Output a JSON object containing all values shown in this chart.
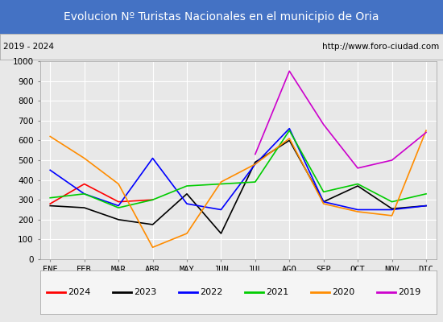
{
  "title": "Evolucion Nº Turistas Nacionales en el municipio de Oria",
  "subtitle_left": "2019 - 2024",
  "subtitle_right": "http://www.foro-ciudad.com",
  "months": [
    "ENE",
    "FEB",
    "MAR",
    "ABR",
    "MAY",
    "JUN",
    "JUL",
    "AGO",
    "SEP",
    "OCT",
    "NOV",
    "DIC"
  ],
  "ylim": [
    0,
    1000
  ],
  "yticks": [
    0,
    100,
    200,
    300,
    400,
    500,
    600,
    700,
    800,
    900,
    1000
  ],
  "series": {
    "2024": {
      "color": "#ff0000",
      "data": [
        280,
        380,
        290,
        300,
        null,
        null,
        null,
        null,
        null,
        null,
        null,
        null
      ]
    },
    "2023": {
      "color": "#000000",
      "data": [
        270,
        260,
        200,
        175,
        330,
        130,
        490,
        600,
        290,
        370,
        255,
        270
      ]
    },
    "2022": {
      "color": "#0000ff",
      "data": [
        450,
        330,
        270,
        510,
        280,
        250,
        480,
        660,
        290,
        250,
        250,
        270
      ]
    },
    "2021": {
      "color": "#00cc00",
      "data": [
        310,
        330,
        260,
        300,
        370,
        380,
        390,
        650,
        340,
        380,
        290,
        330
      ]
    },
    "2020": {
      "color": "#ff8c00",
      "data": [
        620,
        510,
        380,
        60,
        130,
        390,
        480,
        610,
        280,
        240,
        220,
        650
      ]
    },
    "2019": {
      "color": "#cc00cc",
      "data": [
        null,
        null,
        null,
        null,
        null,
        null,
        530,
        950,
        680,
        460,
        500,
        640
      ]
    }
  },
  "title_bg_color": "#4472c4",
  "title_font_color": "#ffffff",
  "subtitle_bg_color": "#e8e8e8",
  "plot_bg_color": "#e8e8e8",
  "grid_color": "#ffffff",
  "fig_bg_color": "#e8e8e8",
  "title_fontsize": 10,
  "subtitle_fontsize": 7.5,
  "tick_fontsize": 7.5,
  "legend_fontsize": 8
}
